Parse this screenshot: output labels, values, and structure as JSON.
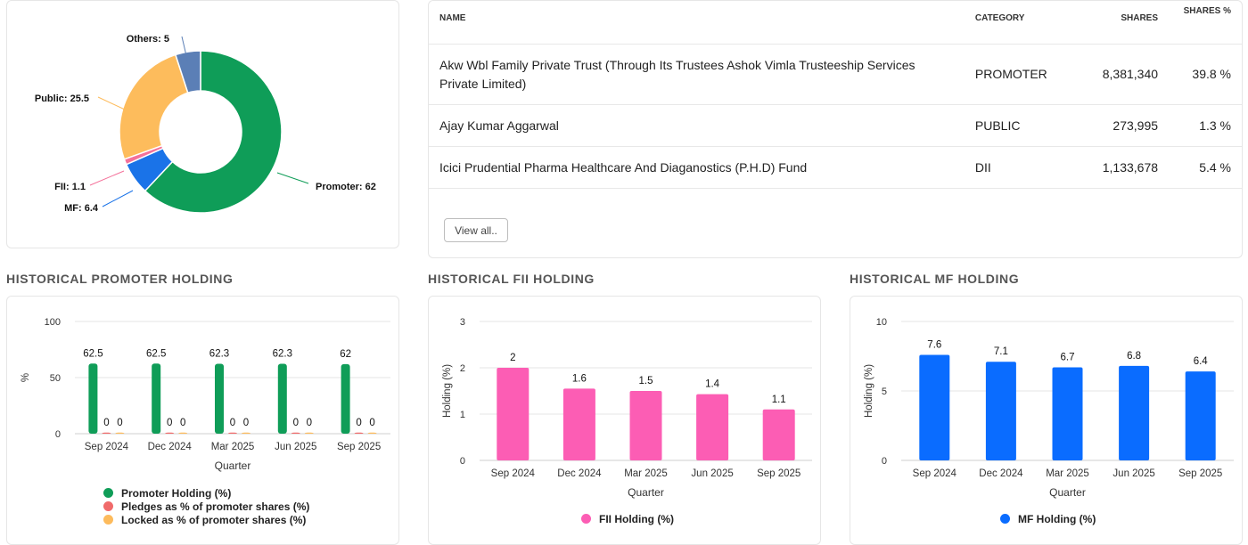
{
  "colors": {
    "promoter": "#0f9d58",
    "public": "#fdbc5c",
    "mf": "#1a73e8",
    "fii": "#f4719a",
    "others": "#5b7fb6",
    "pledge": "#f06a6a",
    "locked": "#fdbb5c",
    "fii_bar": "#fc5db4",
    "mf_bar": "#0a6cff"
  },
  "donut": {
    "slices": [
      {
        "name": "Promoter",
        "value": 62,
        "label": "Promoter: 62",
        "color_key": "promoter"
      },
      {
        "name": "MF",
        "value": 6.4,
        "label": "MF: 6.4",
        "color_key": "mf"
      },
      {
        "name": "FII",
        "value": 1.1,
        "label": "FII: 1.1",
        "color_key": "fii"
      },
      {
        "name": "Public",
        "value": 25.5,
        "label": "Public: 25.5",
        "color_key": "public"
      },
      {
        "name": "Others",
        "value": 5,
        "label": "Others: 5",
        "color_key": "others"
      }
    ]
  },
  "shareholders": {
    "headers": {
      "name": "NAME",
      "category": "CATEGORY",
      "shares": "SHARES",
      "shares_pct": "SHARES %"
    },
    "rows": [
      {
        "name": "Akw Wbl Family Private Trust (Through Its Trustees Ashok Vimla Trusteeship Services Private Limited)",
        "category": "PROMOTER",
        "shares": "8,381,340",
        "pct": "39.8 %"
      },
      {
        "name": "Ajay Kumar Aggarwal",
        "category": "PUBLIC",
        "shares": "273,995",
        "pct": "1.3 %"
      },
      {
        "name": "Icici Prudential Pharma Healthcare And Diaganostics (P.H.D) Fund",
        "category": "DII",
        "shares": "1,133,678",
        "pct": "5.4 %"
      }
    ],
    "view_all_label": "View all.."
  },
  "sections": {
    "promoter_title": "HISTORICAL PROMOTER HOLDING",
    "fii_title": "HISTORICAL FII HOLDING",
    "mf_title": "HISTORICAL MF HOLDING"
  },
  "chart_data": [
    {
      "type": "pie",
      "title": "",
      "categories": [
        "Promoter",
        "MF",
        "FII",
        "Public",
        "Others"
      ],
      "values": [
        62,
        6.4,
        1.1,
        25.5,
        5
      ]
    },
    {
      "type": "bar",
      "title": "HISTORICAL PROMOTER HOLDING",
      "categories": [
        "Sep 2024",
        "Dec 2024",
        "Mar 2025",
        "Jun 2025",
        "Sep 2025"
      ],
      "series": [
        {
          "name": "Promoter Holding (%)",
          "values": [
            62.5,
            62.5,
            62.3,
            62.3,
            62
          ],
          "labels": [
            "62.5",
            "62.5",
            "62.3",
            "62.3",
            "62"
          ],
          "color_key": "promoter"
        },
        {
          "name": "Pledges as % of promoter shares (%)",
          "values": [
            0,
            0,
            0,
            0,
            0
          ],
          "labels": [
            "0",
            "0",
            "0",
            "0",
            "0"
          ],
          "color_key": "pledge"
        },
        {
          "name": "Locked as % of promoter shares (%)",
          "values": [
            0,
            0,
            0,
            0,
            0
          ],
          "labels": [
            "0",
            "0",
            "0",
            "0",
            "0"
          ],
          "color_key": "locked"
        }
      ],
      "xlabel": "Quarter",
      "ylabel": "%",
      "ylim": [
        0,
        100
      ],
      "yticks": [
        0,
        50,
        100
      ]
    },
    {
      "type": "bar",
      "title": "HISTORICAL FII HOLDING",
      "categories": [
        "Sep 2024",
        "Dec 2024",
        "Mar 2025",
        "Jun 2025",
        "Sep 2025"
      ],
      "series": [
        {
          "name": "FII Holding (%)",
          "values": [
            2,
            1.55,
            1.5,
            1.43,
            1.1
          ],
          "labels": [
            "2",
            "1.6",
            "1.5",
            "1.4",
            "1.1"
          ],
          "color_key": "fii_bar"
        }
      ],
      "xlabel": "Quarter",
      "ylabel": "Holding (%)",
      "ylim": [
        0,
        3
      ],
      "yticks": [
        0,
        1,
        2,
        3
      ]
    },
    {
      "type": "bar",
      "title": "HISTORICAL MF HOLDING",
      "categories": [
        "Sep 2024",
        "Dec 2024",
        "Mar 2025",
        "Jun 2025",
        "Sep 2025"
      ],
      "series": [
        {
          "name": "MF Holding (%)",
          "values": [
            7.6,
            7.1,
            6.7,
            6.8,
            6.4
          ],
          "labels": [
            "7.6",
            "7.1",
            "6.7",
            "6.8",
            "6.4"
          ],
          "color_key": "mf_bar"
        }
      ],
      "xlabel": "Quarter",
      "ylabel": "Holding (%)",
      "ylim": [
        0,
        10
      ],
      "yticks": [
        0,
        5,
        10
      ]
    }
  ]
}
